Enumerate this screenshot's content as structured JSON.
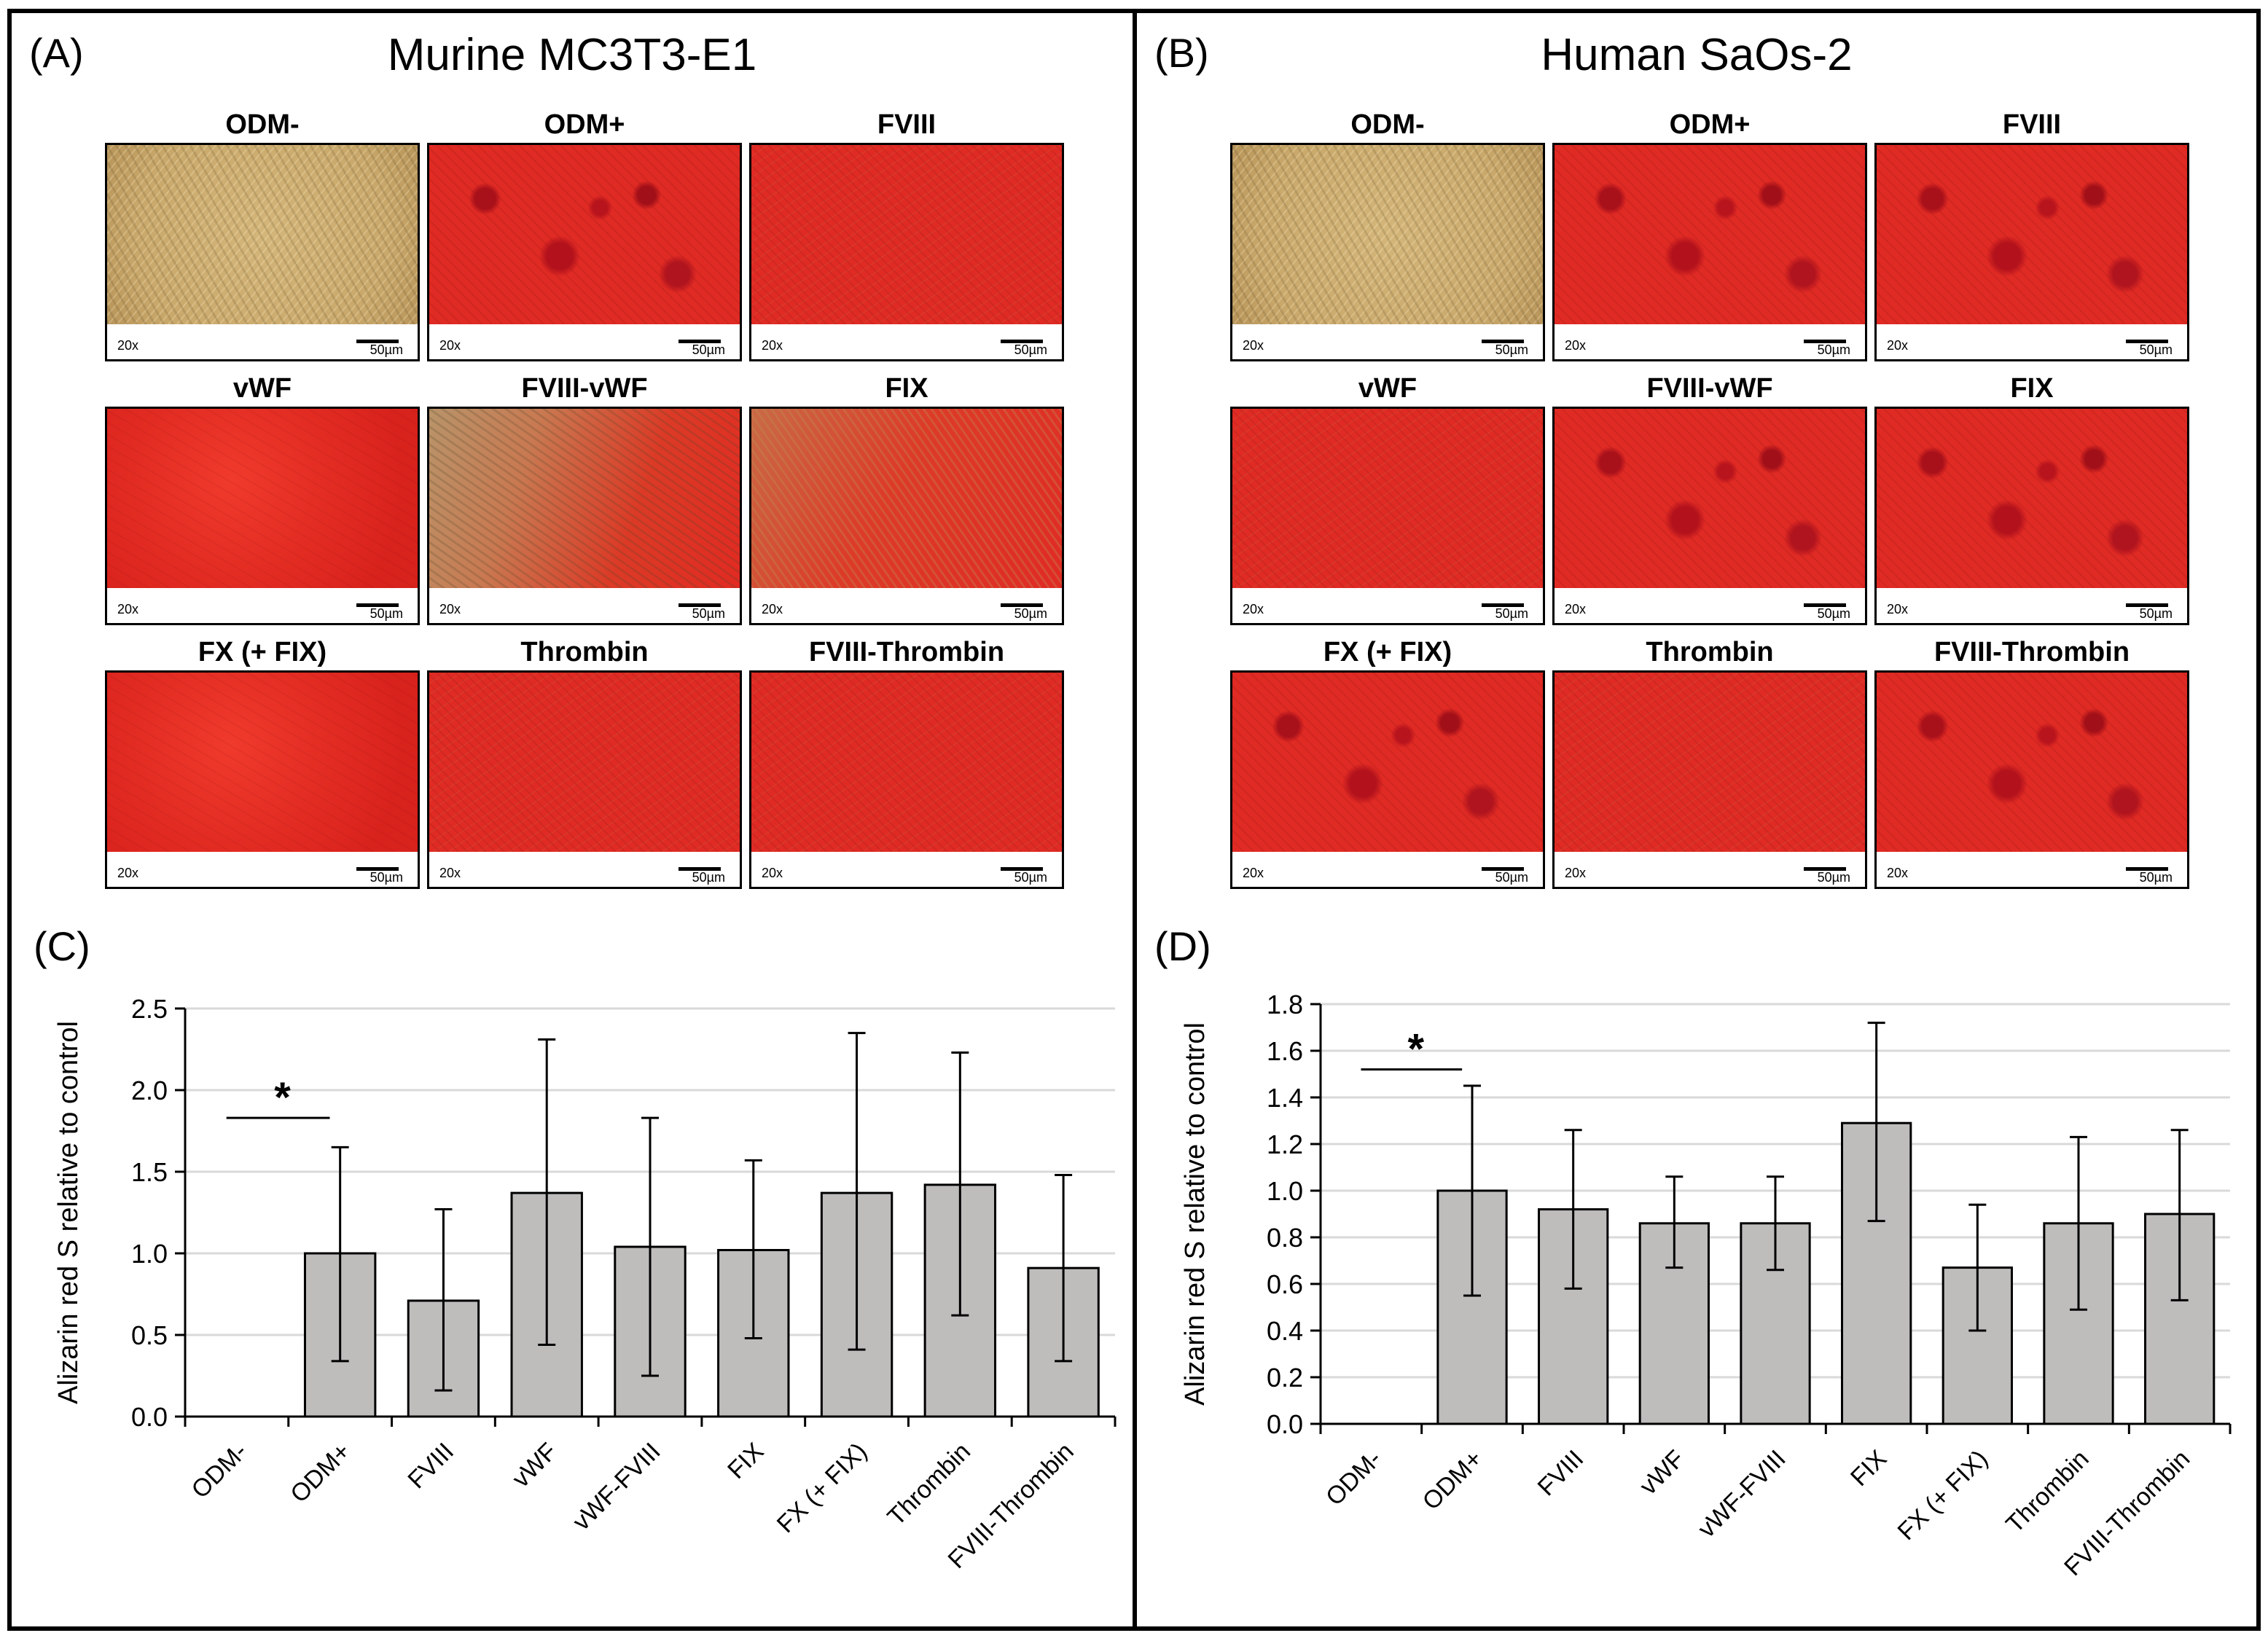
{
  "panel_letters": {
    "A": "(A)",
    "B": "(B)",
    "C": "(C)",
    "D": "(D)"
  },
  "titles": {
    "A": "Murine MC3T3-E1",
    "B": "Human SaOs-2"
  },
  "micrographs": {
    "A": [
      {
        "label": "ODM-",
        "magnification": "20x",
        "scale": "50µm",
        "stain": "unstained"
      },
      {
        "label": "ODM+",
        "magnification": "20x",
        "scale": "50µm",
        "stain": "nodular"
      },
      {
        "label": "FVIII",
        "magnification": "20x",
        "scale": "50µm",
        "stain": "red"
      },
      {
        "label": "vWF",
        "magnification": "20x",
        "scale": "50µm",
        "stain": "bright"
      },
      {
        "label": "FVIII-vWF",
        "magnification": "20x",
        "scale": "50µm",
        "stain": "partial"
      },
      {
        "label": "FIX",
        "magnification": "20x",
        "scale": "50µm",
        "stain": "fibrous"
      },
      {
        "label": "FX (+ FIX)",
        "magnification": "20x",
        "scale": "50µm",
        "stain": "bright"
      },
      {
        "label": "Thrombin",
        "magnification": "20x",
        "scale": "50µm",
        "stain": "red"
      },
      {
        "label": "FVIII-Thrombin",
        "magnification": "20x",
        "scale": "50µm",
        "stain": "red"
      }
    ],
    "B": [
      {
        "label": "ODM-",
        "magnification": "20x",
        "scale": "50µm",
        "stain": "unstained"
      },
      {
        "label": "ODM+",
        "magnification": "20x",
        "scale": "50µm",
        "stain": "nodular"
      },
      {
        "label": "FVIII",
        "magnification": "20x",
        "scale": "50µm",
        "stain": "nodular"
      },
      {
        "label": "vWF",
        "magnification": "20x",
        "scale": "50µm",
        "stain": "red"
      },
      {
        "label": "FVIII-vWF",
        "magnification": "20x",
        "scale": "50µm",
        "stain": "nodular"
      },
      {
        "label": "FIX",
        "magnification": "20x",
        "scale": "50µm",
        "stain": "nodular"
      },
      {
        "label": "FX (+ FIX)",
        "magnification": "20x",
        "scale": "50µm",
        "stain": "nodular"
      },
      {
        "label": "Thrombin",
        "magnification": "20x",
        "scale": "50µm",
        "stain": "red"
      },
      {
        "label": "FVIII-Thrombin",
        "magnification": "20x",
        "scale": "50µm",
        "stain": "nodular"
      }
    ]
  },
  "colors": {
    "bar_fill": "#bfbcbc",
    "stain_red": "#e02a24",
    "unstained": "#c9a86b",
    "grid": "#d9d9d9"
  },
  "chart_data": [
    {
      "panel": "C",
      "type": "bar",
      "categories": [
        "ODM-",
        "ODM+",
        "FVIII",
        "vWF",
        "vWF-FVIII",
        "FIX",
        "FX (+ FIX)",
        "Thrombin",
        "FVIII-Thrombin"
      ],
      "values": [
        0,
        1.0,
        0.71,
        1.37,
        1.04,
        1.02,
        1.37,
        1.42,
        0.91
      ],
      "error_low": [
        null,
        0.34,
        0.16,
        0.44,
        0.25,
        0.48,
        0.41,
        0.62,
        0.34
      ],
      "error_high": [
        null,
        1.65,
        1.27,
        2.31,
        1.83,
        1.57,
        2.35,
        2.23,
        1.48
      ],
      "ylabel": "Alizarin red S relative to control",
      "ylim": [
        0,
        2.5
      ],
      "yticks": [
        0.0,
        0.5,
        1.0,
        1.5,
        2.0,
        2.5
      ],
      "significance": {
        "from": "ODM-",
        "to": "ODM+",
        "y": 1.83,
        "mark": "*"
      },
      "grid": true
    },
    {
      "panel": "D",
      "type": "bar",
      "categories": [
        "ODM-",
        "ODM+",
        "FVIII",
        "vWF",
        "vWF-FVIII",
        "FIX",
        "FX (+ FIX)",
        "Thrombin",
        "FVIII-Thrombin"
      ],
      "values": [
        0,
        1.0,
        0.92,
        0.86,
        0.86,
        1.29,
        0.67,
        0.86,
        0.9
      ],
      "error_low": [
        null,
        0.55,
        0.58,
        0.67,
        0.66,
        0.87,
        0.4,
        0.49,
        0.53
      ],
      "error_high": [
        null,
        1.45,
        1.26,
        1.06,
        1.06,
        1.72,
        0.94,
        1.23,
        1.26
      ],
      "ylabel": "Alizarin red S relative to control",
      "ylim": [
        0,
        1.8
      ],
      "yticks": [
        0.0,
        0.2,
        0.4,
        0.6,
        0.8,
        1.0,
        1.2,
        1.4,
        1.6,
        1.8
      ],
      "significance": {
        "from": "ODM-",
        "to": "ODM+",
        "y": 1.52,
        "mark": "*"
      },
      "grid": true
    }
  ]
}
